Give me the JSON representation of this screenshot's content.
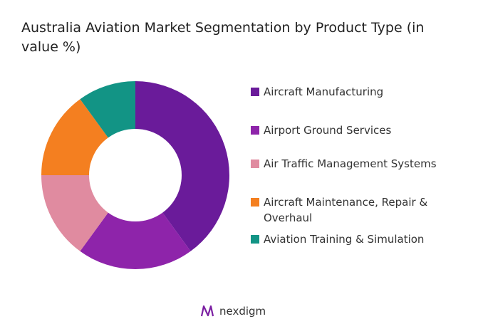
{
  "chart_data": {
    "type": "donut",
    "title": "Australia Aviation Market Segmentation by Product Type (in value %)",
    "categories": [
      "Aircraft Manufacturing",
      "Airport Ground Services",
      "Air Traffic Management Systems",
      "Aircraft Maintenance, Repair & Overhaul",
      "Aviation Training & Simulation"
    ],
    "values": [
      40,
      20,
      15,
      15,
      10
    ],
    "colors": [
      "#6a1b9a",
      "#8e24aa",
      "#e08ba0",
      "#f47f20",
      "#129485"
    ],
    "legend": "right"
  },
  "logo": "nexdigm"
}
